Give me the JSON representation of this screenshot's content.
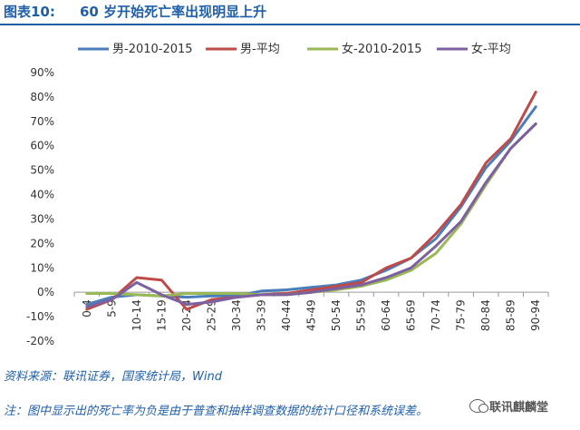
{
  "figure": {
    "label": "图表10:",
    "title": "60 岁开始死亡率出现明显上升"
  },
  "source": "资料来源：联讯证券，国家统计局，Wind",
  "note": "注：图中显示出的死亡率为负是由于普查和抽样调查数据的统计口径和系统误差。",
  "watermark": "联讯麒麟堂",
  "chart_data": {
    "type": "line",
    "title": "",
    "xlabel": "",
    "ylabel": "",
    "ylim": [
      -20,
      90
    ],
    "yticks": [
      -20,
      -10,
      0,
      10,
      20,
      30,
      40,
      50,
      60,
      70,
      80,
      90
    ],
    "ytick_labels": [
      "-20%",
      "-10%",
      "0%",
      "10%",
      "20%",
      "30%",
      "40%",
      "50%",
      "60%",
      "70%",
      "80%",
      "90%"
    ],
    "grid": false,
    "legend_position": "top",
    "categories": [
      "0-4",
      "5-9",
      "10-14",
      "15-19",
      "20-24",
      "25-29",
      "30-34",
      "35-39",
      "40-44",
      "45-49",
      "50-54",
      "55-59",
      "60-64",
      "65-69",
      "70-74",
      "75-79",
      "80-84",
      "85-89",
      "90-94"
    ],
    "series": [
      {
        "name": "男-2010-2015",
        "color": "#4a7ebb",
        "values": [
          -5,
          -2,
          -1,
          -1.5,
          -2,
          -1.5,
          -1.5,
          0.5,
          1,
          2,
          3,
          5,
          9,
          14,
          22,
          35,
          51,
          62,
          76
        ]
      },
      {
        "name": "男-平均",
        "color": "#be4b48",
        "values": [
          -7,
          -3,
          6,
          5,
          -7,
          -3,
          -2,
          -1,
          -0.5,
          1,
          2.5,
          4,
          10,
          14,
          24,
          36,
          53,
          63,
          82
        ]
      },
      {
        "name": "女-2010-2015",
        "color": "#98b954",
        "values": [
          -0.5,
          -0.5,
          -1,
          -1.5,
          -0.5,
          -0.5,
          -0.5,
          -1,
          -1,
          0,
          1,
          2.5,
          5,
          9,
          16,
          28,
          44,
          59,
          69
        ]
      },
      {
        "name": "女-平均",
        "color": "#7d60a0",
        "values": [
          -6,
          -3,
          4,
          -1,
          -5,
          -4,
          -2,
          -1,
          -1,
          0,
          1.5,
          3,
          6,
          10,
          19,
          29,
          45,
          59,
          69
        ]
      }
    ]
  }
}
